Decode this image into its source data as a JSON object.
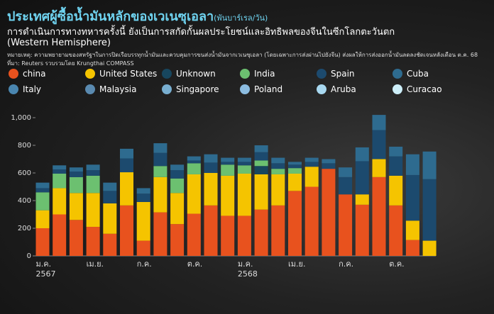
{
  "chart_data": {
    "type": "stacked_bar",
    "title": "ประเทศผู้ซื้อน้ำมันหลักของเวเนซุเอลา",
    "unit": "(พันบาร์เรล/วัน)",
    "subtitle": "การดำเนินการทางทหารครั้งนี้ ยังเป็นการสกัดกั้นผลประโยชน์และอิทธิพลของจีนในซีกโลกตะวันตก (Western Hemisphere)",
    "note": "หมายเหตุ: ความพยายามของสหรัฐฯในการปิดเรือบรรทุกน้ำมันและควบคุมการขนส่งน้ำมันจากเวเนซุเอลา (โดยเฉพาะการส่งผ่านไปยังจีน) ส่งผลให้การส่งออกน้ำมันลดลงชัดเจนหลังเดือน ต.ค. 68",
    "source": "ที่มา: Reuters รวบรวมโดย Krungthai COMPASS",
    "categories": [
      "ม.ค.\n2567",
      null,
      null,
      "เม.ย.",
      null,
      null,
      "ก.ค.",
      null,
      null,
      "ต.ค.",
      null,
      null,
      "ม.ค.\n2568",
      null,
      null,
      "เม.ย.",
      null,
      null,
      "ก.ค.",
      null,
      null,
      "ต.ค.",
      null,
      null
    ],
    "ylim": [
      0,
      1050
    ],
    "yticks": [
      0,
      200,
      400,
      600,
      800,
      {
        "value": 1000,
        "label": "1,000"
      }
    ],
    "series": [
      {
        "name": "china",
        "color": "#e8521e",
        "values": [
          200,
          300,
          260,
          210,
          160,
          365,
          110,
          315,
          230,
          305,
          365,
          290,
          290,
          335,
          365,
          470,
          500,
          630,
          445,
          370,
          570,
          365,
          115,
          0
        ]
      },
      {
        "name": "United States",
        "color": "#f5c400",
        "values": [
          130,
          190,
          195,
          245,
          220,
          240,
          280,
          255,
          225,
          285,
          235,
          290,
          305,
          255,
          225,
          125,
          145,
          0,
          0,
          75,
          130,
          215,
          140,
          110
        ]
      },
      {
        "name": "Unknown",
        "color": "#17465e",
        "values": [
          0,
          0,
          0,
          0,
          0,
          0,
          0,
          0,
          0,
          0,
          0,
          0,
          0,
          60,
          0,
          0,
          0,
          0,
          0,
          0,
          0,
          0,
          0,
          0
        ]
      },
      {
        "name": "India",
        "color": "#6cc070",
        "values": [
          130,
          105,
          115,
          125,
          0,
          0,
          0,
          80,
          105,
          80,
          0,
          80,
          60,
          40,
          40,
          40,
          0,
          0,
          0,
          0,
          0,
          0,
          0,
          0
        ]
      },
      {
        "name": "Spain",
        "color": "#1c4a6e",
        "values": [
          30,
          30,
          40,
          40,
          90,
          100,
          60,
          95,
          60,
          20,
          75,
          20,
          25,
          60,
          40,
          25,
          35,
          40,
          125,
          240,
          210,
          140,
          330,
          445
        ]
      },
      {
        "name": "Cuba",
        "color": "#2e6b8f",
        "values": [
          40,
          30,
          30,
          40,
          60,
          70,
          40,
          70,
          40,
          30,
          60,
          30,
          30,
          50,
          40,
          20,
          30,
          30,
          70,
          100,
          110,
          70,
          150,
          200
        ]
      },
      {
        "name": "Italy",
        "color": "#4a86b0",
        "values": [
          0,
          0,
          0,
          0,
          0,
          0,
          0,
          0,
          0,
          0,
          0,
          0,
          0,
          0,
          0,
          0,
          0,
          0,
          0,
          0,
          0,
          0,
          0,
          0
        ]
      },
      {
        "name": "Malaysia",
        "color": "#5a8ab0",
        "values": [
          0,
          0,
          0,
          0,
          0,
          0,
          0,
          0,
          0,
          0,
          0,
          0,
          0,
          0,
          0,
          0,
          0,
          0,
          0,
          0,
          0,
          0,
          0,
          0
        ]
      },
      {
        "name": "Singapore",
        "color": "#78aed0",
        "values": [
          0,
          0,
          0,
          0,
          0,
          0,
          0,
          0,
          0,
          0,
          0,
          0,
          0,
          0,
          0,
          0,
          0,
          0,
          0,
          0,
          0,
          0,
          0,
          0
        ]
      },
      {
        "name": "Poland",
        "color": "#8cbce0",
        "values": [
          0,
          0,
          0,
          0,
          0,
          0,
          0,
          0,
          0,
          0,
          0,
          0,
          0,
          0,
          0,
          0,
          0,
          0,
          0,
          0,
          0,
          0,
          0,
          0
        ]
      },
      {
        "name": "Aruba",
        "color": "#a8d8f0",
        "values": [
          0,
          0,
          0,
          0,
          0,
          0,
          0,
          0,
          0,
          0,
          0,
          0,
          0,
          0,
          0,
          0,
          0,
          0,
          0,
          0,
          0,
          0,
          0,
          0
        ]
      },
      {
        "name": "Curacao",
        "color": "#cdeef8",
        "values": [
          0,
          0,
          0,
          0,
          0,
          0,
          0,
          0,
          0,
          0,
          0,
          0,
          0,
          0,
          0,
          0,
          0,
          0,
          0,
          0,
          0,
          0,
          0,
          0
        ]
      }
    ]
  }
}
